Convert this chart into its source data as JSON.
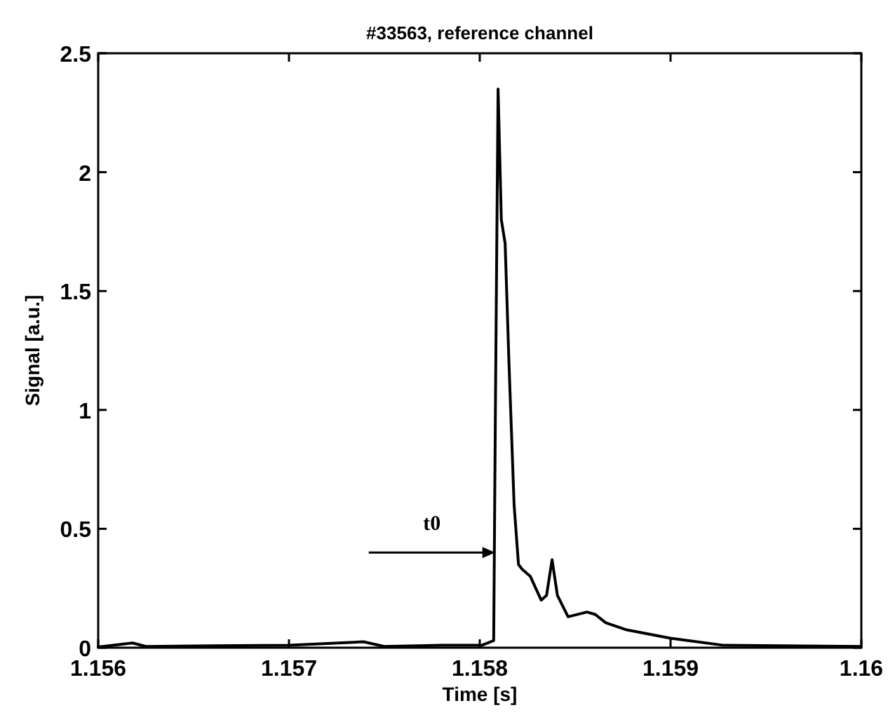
{
  "chart_data": {
    "type": "line",
    "title": "#33563, reference channel",
    "xlabel": "Time [s]",
    "ylabel": "Signal [a.u.]",
    "x": [
      1.156,
      1.15618,
      1.15625,
      1.1566,
      1.157,
      1.15739,
      1.1575,
      1.1578,
      1.15801,
      1.158073,
      1.158082,
      1.158096,
      1.158113,
      1.158133,
      1.158153,
      1.15818,
      1.158203,
      1.158222,
      1.158265,
      1.158322,
      1.15835,
      1.158379,
      1.158407,
      1.158463,
      1.158562,
      1.158605,
      1.15866,
      1.15877,
      1.159,
      1.15928,
      1.16
    ],
    "series": [
      {
        "color": "#000000",
        "values": [
          0.003,
          0.02,
          0.005,
          0.008,
          0.01,
          0.025,
          0.005,
          0.01,
          0.01,
          0.03,
          1.0,
          2.35,
          1.8,
          1.7,
          1.2,
          0.6,
          0.35,
          0.33,
          0.3,
          0.2,
          0.22,
          0.37,
          0.22,
          0.13,
          0.15,
          0.14,
          0.105,
          0.075,
          0.04,
          0.01,
          0.005
        ]
      }
    ],
    "xlim": [
      1.156,
      1.16
    ],
    "ylim": [
      0,
      2.5
    ],
    "xticks": [
      1.156,
      1.157,
      1.158,
      1.159,
      1.16
    ],
    "yticks": [
      0,
      0.5,
      1,
      1.5,
      2,
      2.5
    ],
    "annotations": [
      {
        "text": "t0",
        "x": 1.15808,
        "y": 0.4
      }
    ],
    "grid": false,
    "marker": "none",
    "line_style": "solid"
  }
}
